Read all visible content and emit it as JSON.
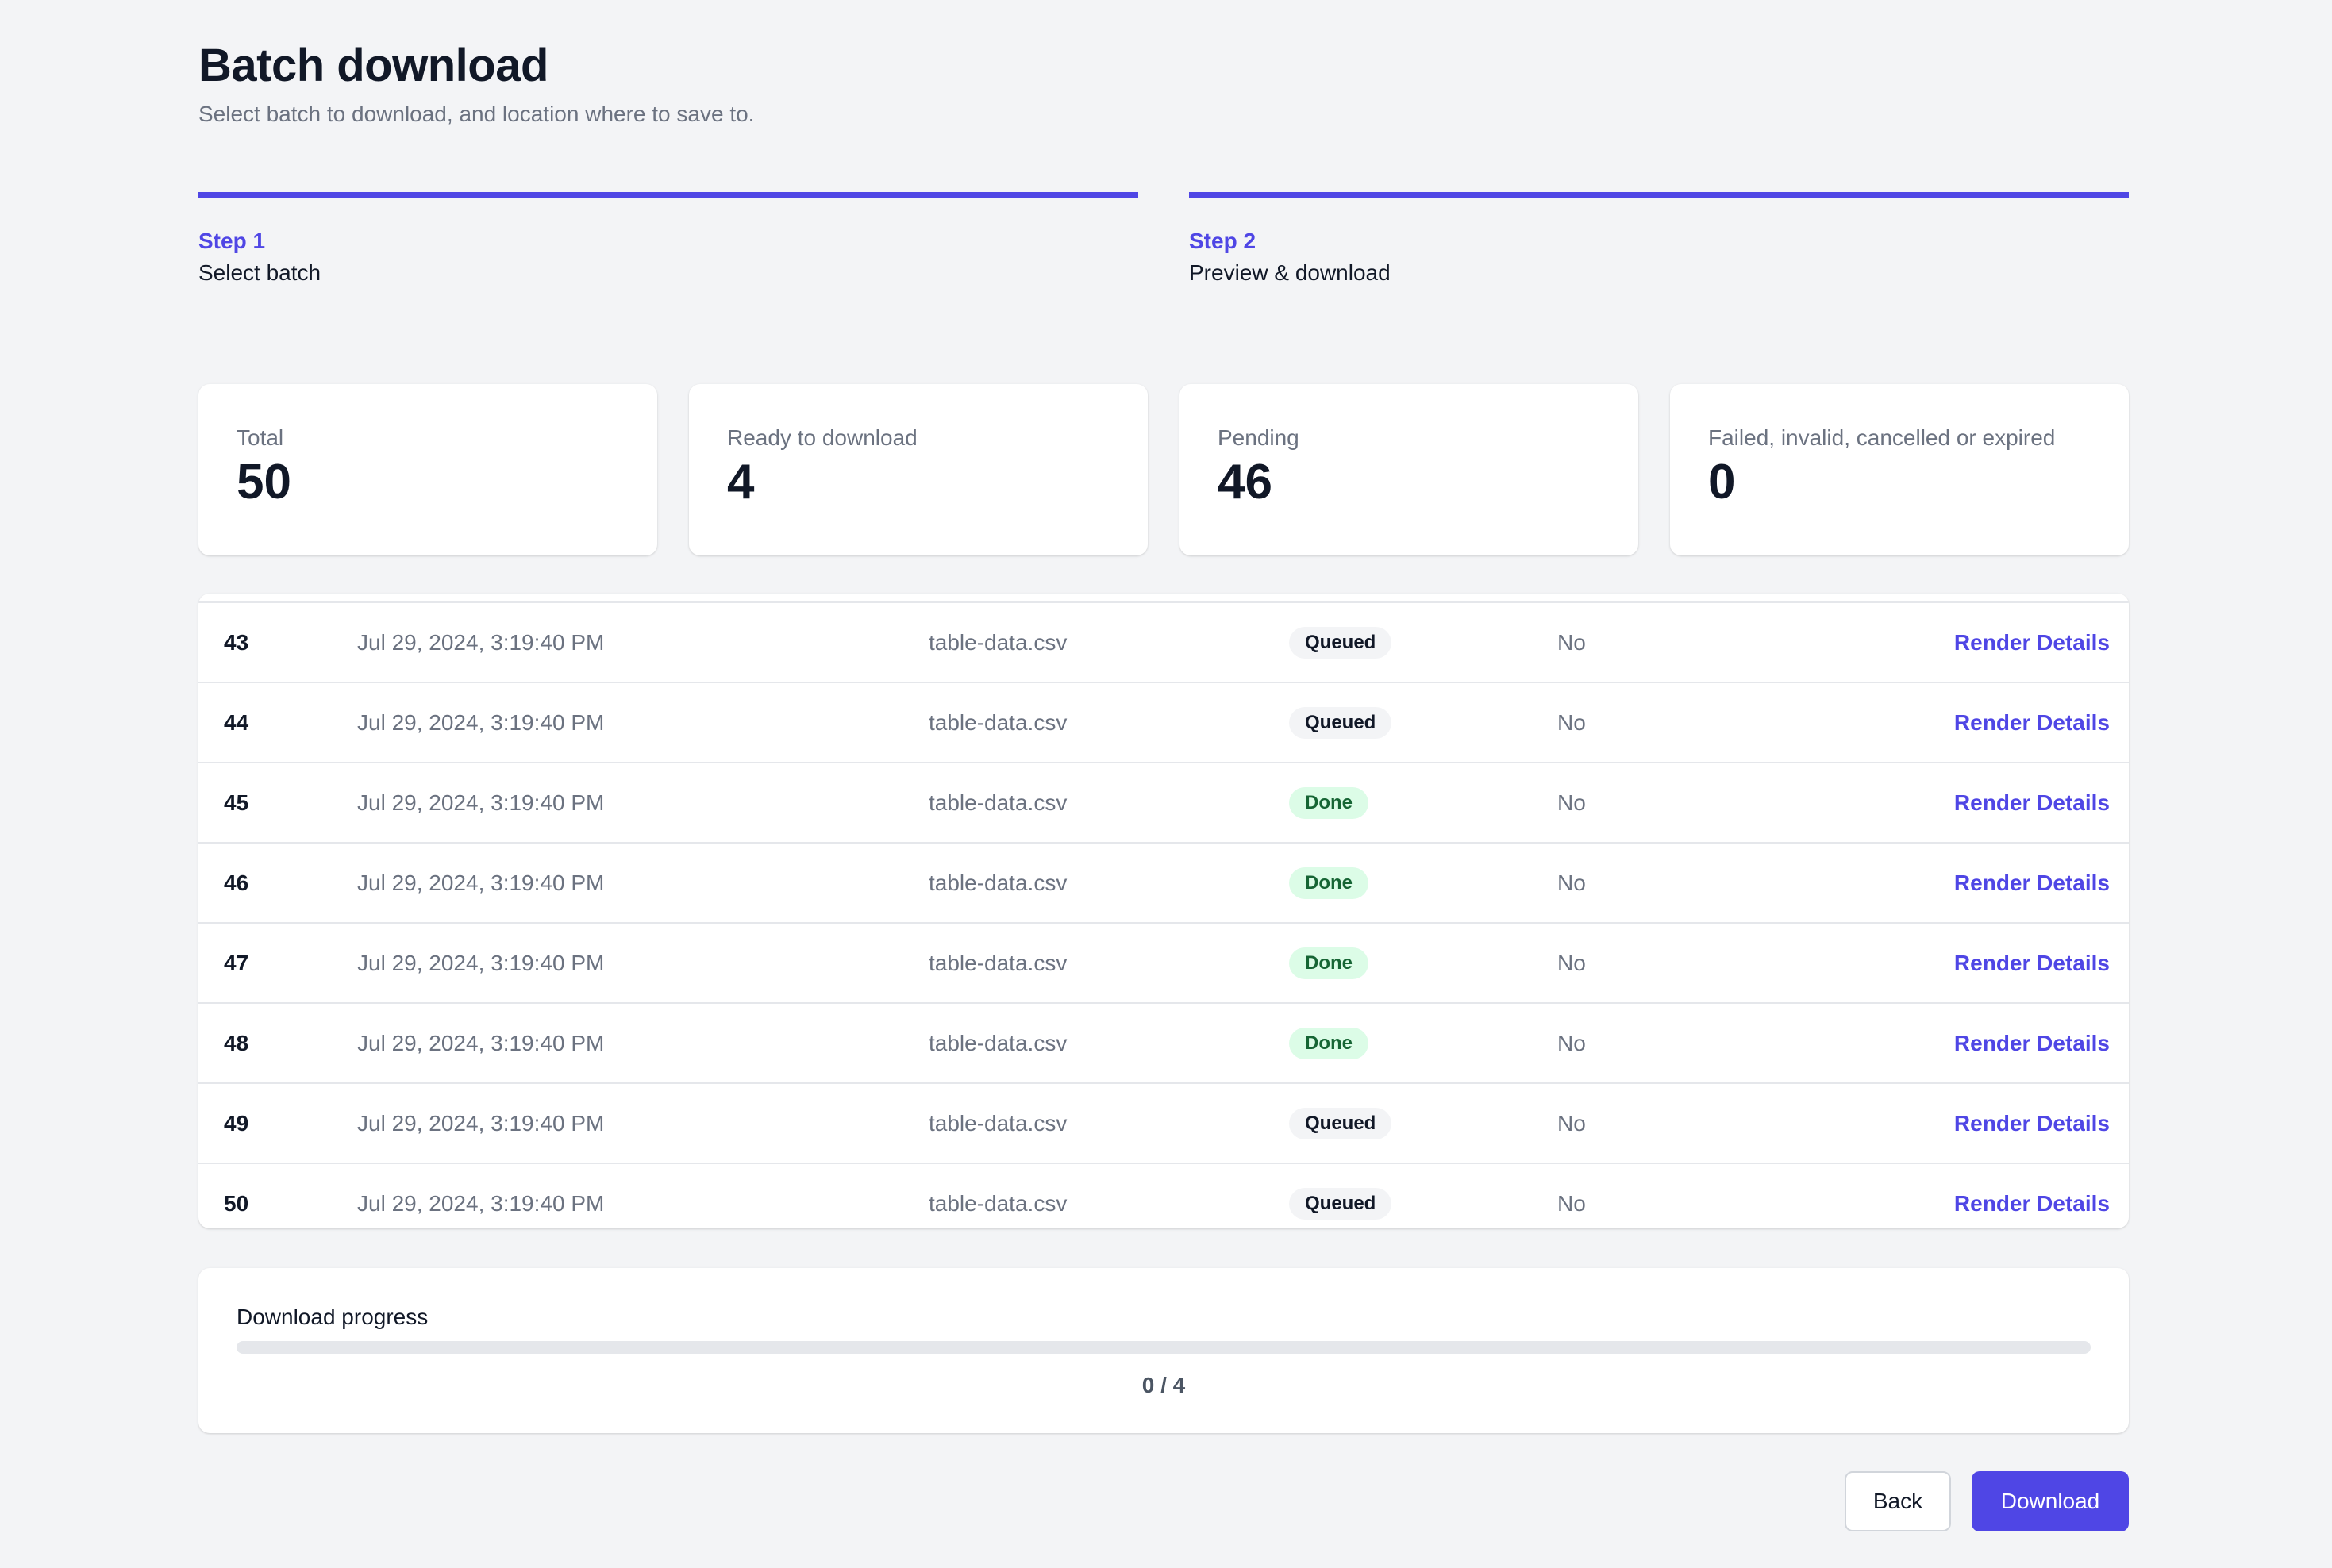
{
  "header": {
    "title": "Batch download",
    "subtitle": "Select batch to download, and location where to save to."
  },
  "steps": [
    {
      "label": "Step 1",
      "name": "Select batch"
    },
    {
      "label": "Step 2",
      "name": "Preview & download"
    }
  ],
  "stats": [
    {
      "label": "Total",
      "value": "50"
    },
    {
      "label": "Ready to download",
      "value": "4"
    },
    {
      "label": "Pending",
      "value": "46"
    },
    {
      "label": "Failed, invalid, cancelled or expired",
      "value": "0"
    }
  ],
  "table": {
    "action_label": "Render Details",
    "rows": [
      {
        "id": "43",
        "date": "Jul 29, 2024, 3:19:40 PM",
        "file": "table-data.csv",
        "status": "Queued",
        "flag": "No"
      },
      {
        "id": "44",
        "date": "Jul 29, 2024, 3:19:40 PM",
        "file": "table-data.csv",
        "status": "Queued",
        "flag": "No"
      },
      {
        "id": "45",
        "date": "Jul 29, 2024, 3:19:40 PM",
        "file": "table-data.csv",
        "status": "Done",
        "flag": "No"
      },
      {
        "id": "46",
        "date": "Jul 29, 2024, 3:19:40 PM",
        "file": "table-data.csv",
        "status": "Done",
        "flag": "No"
      },
      {
        "id": "47",
        "date": "Jul 29, 2024, 3:19:40 PM",
        "file": "table-data.csv",
        "status": "Done",
        "flag": "No"
      },
      {
        "id": "48",
        "date": "Jul 29, 2024, 3:19:40 PM",
        "file": "table-data.csv",
        "status": "Done",
        "flag": "No"
      },
      {
        "id": "49",
        "date": "Jul 29, 2024, 3:19:40 PM",
        "file": "table-data.csv",
        "status": "Queued",
        "flag": "No"
      },
      {
        "id": "50",
        "date": "Jul 29, 2024, 3:19:40 PM",
        "file": "table-data.csv",
        "status": "Queued",
        "flag": "No"
      }
    ]
  },
  "progress": {
    "label": "Download progress",
    "done": 0,
    "total": 4,
    "text": "0 / 4"
  },
  "buttons": {
    "back": "Back",
    "download": "Download"
  },
  "colors": {
    "accent": "#4f46e5",
    "done_bg": "#dcfce7",
    "done_text": "#166534",
    "queued_bg": "#f3f4f6"
  }
}
